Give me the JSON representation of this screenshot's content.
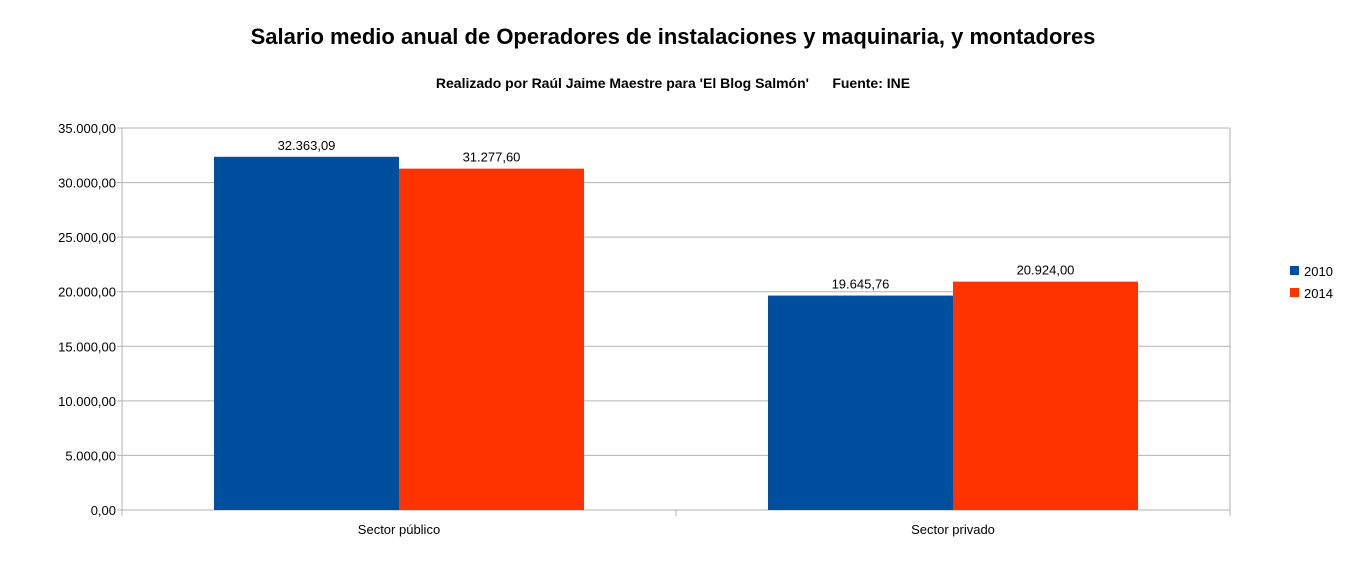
{
  "chart_data": {
    "type": "bar",
    "title": "Salario medio anual de Operadores de instalaciones y maquinaria, y montadores",
    "subtitle": "Realizado por Raúl Jaime Maestre para 'El Blog Salmón'      Fuente: INE",
    "categories": [
      "Sector público",
      "Sector privado"
    ],
    "series": [
      {
        "name": "2010",
        "color": "#004f9f",
        "values": [
          32363.09,
          19645.76
        ],
        "labels": [
          "32.363,09",
          "19.645,76"
        ]
      },
      {
        "name": "2014",
        "color": "#ff3300",
        "values": [
          31277.6,
          20924.0
        ],
        "labels": [
          "31.277,60",
          "20.924,00"
        ]
      }
    ],
    "ylim": [
      0,
      35000
    ],
    "yticks": [
      {
        "value": 0,
        "label": "0,00"
      },
      {
        "value": 5000,
        "label": "5.000,00"
      },
      {
        "value": 10000,
        "label": "10.000,00"
      },
      {
        "value": 15000,
        "label": "15.000,00"
      },
      {
        "value": 20000,
        "label": "20.000,00"
      },
      {
        "value": 25000,
        "label": "25.000,00"
      },
      {
        "value": 30000,
        "label": "30.000,00"
      },
      {
        "value": 35000,
        "label": "35.000,00"
      }
    ],
    "xlabel": "",
    "ylabel": "",
    "grid": true,
    "legend_position": "right"
  }
}
